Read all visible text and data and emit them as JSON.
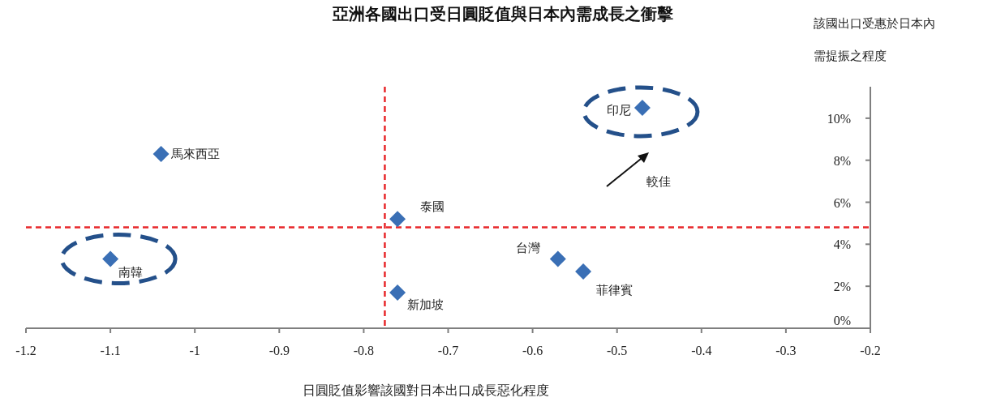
{
  "chart_data": {
    "type": "scatter",
    "title": "亞洲各國出口受日圓貶值與日本內需成長之衝擊",
    "xlabel": "日圓貶值影響該國對日本出口成長惡化程度",
    "ylabel": "該國出口受惠於日本內需提振之程度",
    "annotations": [
      "較佳"
    ],
    "marker": "diamond",
    "grid": false,
    "xlim": [
      -1.2,
      -0.2
    ],
    "xticks": [
      -1.2,
      -1.1,
      -1,
      -0.9,
      -0.8,
      -0.7,
      -0.6,
      -0.5,
      -0.4,
      -0.3,
      -0.2
    ],
    "ylim": [
      0,
      11.5
    ],
    "yticks": [
      {
        "value": 0,
        "label": "0%"
      },
      {
        "value": 2,
        "label": "2%"
      },
      {
        "value": 4,
        "label": "4%"
      },
      {
        "value": 6,
        "label": "6%"
      },
      {
        "value": 8,
        "label": "8%"
      },
      {
        "value": 10,
        "label": "10%"
      }
    ],
    "ref_lines": [
      {
        "axis": "x",
        "value": -0.775,
        "label": null,
        "color": "#e8282b",
        "line_style": "dashed"
      },
      {
        "axis": "y",
        "value": 4.8,
        "label": null,
        "color": "#e8282b",
        "line_style": "dashed"
      }
    ],
    "series": [
      {
        "name": "馬來西亞",
        "color": "#3a6fb5",
        "x": [
          -1.04
        ],
        "values": [
          8.3
        ]
      },
      {
        "name": "南韓",
        "color": "#3a6fb5",
        "x": [
          -1.1
        ],
        "values": [
          3.3
        ]
      },
      {
        "name": "泰國",
        "color": "#3a6fb5",
        "x": [
          -0.76
        ],
        "values": [
          5.2
        ]
      },
      {
        "name": "新加坡",
        "color": "#3a6fb5",
        "x": [
          -0.76
        ],
        "values": [
          1.7
        ]
      },
      {
        "name": "台灣",
        "color": "#3a6fb5",
        "x": [
          -0.57
        ],
        "values": [
          3.3
        ]
      },
      {
        "name": "菲律賓",
        "color": "#3a6fb5",
        "x": [
          -0.54
        ],
        "values": [
          2.7
        ]
      },
      {
        "name": "印尼",
        "color": "#3a6fb5",
        "x": [
          -0.47
        ],
        "values": [
          10.5
        ]
      }
    ]
  }
}
